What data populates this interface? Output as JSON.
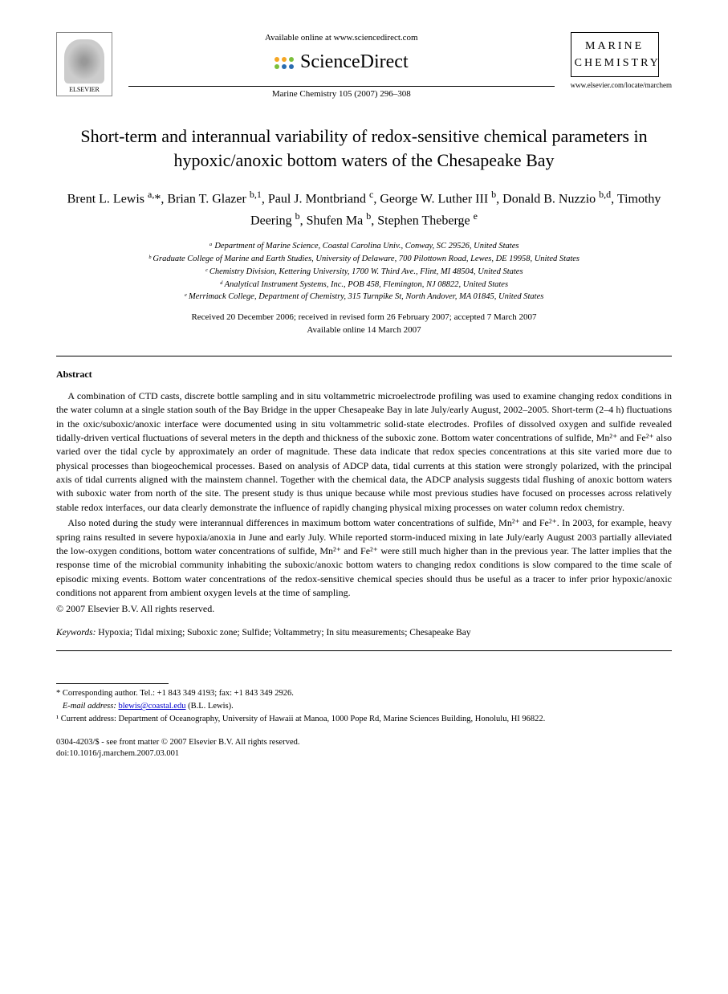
{
  "header": {
    "available_online": "Available online at www.sciencedirect.com",
    "sciencedirect": "ScienceDirect",
    "elsevier_label": "ELSEVIER",
    "journal_ref": "Marine Chemistry 105 (2007) 296–308",
    "journal_cover_line1": "MARINE",
    "journal_cover_line2": "CHEMISTRY",
    "journal_url": "www.elsevier.com/locate/marchem",
    "sd_dot_colors": [
      "#f5a623",
      "#f5a623",
      "#7bbf3a",
      "#7bbf3a",
      "#2b6cb0",
      "#2b6cb0"
    ]
  },
  "article": {
    "title": "Short-term and interannual variability of redox-sensitive chemical parameters in hypoxic/anoxic bottom waters of the Chesapeake Bay",
    "authors_html": "Brent L. Lewis <sup>a,</sup>*, Brian T. Glazer <sup>b,1</sup>, Paul J. Montbriand <sup>c</sup>, George W. Luther III <sup>b</sup>, Donald B. Nuzzio <sup>b,d</sup>, Timothy Deering <sup>b</sup>, Shufen Ma <sup>b</sup>, Stephen Theberge <sup>e</sup>",
    "affiliations": [
      "ᵃ Department of Marine Science, Coastal Carolina Univ., Conway, SC 29526, United States",
      "ᵇ Graduate College of Marine and Earth Studies, University of Delaware, 700 Pilottown Road, Lewes, DE 19958, United States",
      "ᶜ Chemistry Division, Kettering University, 1700 W. Third Ave., Flint, MI 48504, United States",
      "ᵈ Analytical Instrument Systems, Inc., POB 458, Flemington, NJ 08822, United States",
      "ᵉ Merrimack College, Department of Chemistry, 315 Turnpike St, North Andover, MA 01845, United States"
    ],
    "dates_line1": "Received 20 December 2006; received in revised form 26 February 2007; accepted 7 March 2007",
    "dates_line2": "Available online 14 March 2007"
  },
  "abstract": {
    "heading": "Abstract",
    "paragraphs": [
      "A combination of CTD casts, discrete bottle sampling and in situ voltammetric microelectrode profiling was used to examine changing redox conditions in the water column at a single station south of the Bay Bridge in the upper Chesapeake Bay in late July/early August, 2002–2005. Short-term (2–4 h) fluctuations in the oxic/suboxic/anoxic interface were documented using in situ voltammetric solid-state electrodes. Profiles of dissolved oxygen and sulfide revealed tidally-driven vertical fluctuations of several meters in the depth and thickness of the suboxic zone. Bottom water concentrations of sulfide, Mn²⁺ and Fe²⁺ also varied over the tidal cycle by approximately an order of magnitude. These data indicate that redox species concentrations at this site varied more due to physical processes than biogeochemical processes. Based on analysis of ADCP data, tidal currents at this station were strongly polarized, with the principal axis of tidal currents aligned with the mainstem channel. Together with the chemical data, the ADCP analysis suggests tidal flushing of anoxic bottom waters with suboxic water from north of the site. The present study is thus unique because while most previous studies have focused on processes across relatively stable redox interfaces, our data clearly demonstrate the influence of rapidly changing physical mixing processes on water column redox chemistry.",
      "Also noted during the study were interannual differences in maximum bottom water concentrations of sulfide, Mn²⁺ and Fe²⁺. In 2003, for example, heavy spring rains resulted in severe hypoxia/anoxia in June and early July. While reported storm-induced mixing in late July/early August 2003 partially alleviated the low-oxygen conditions, bottom water concentrations of sulfide, Mn²⁺ and Fe²⁺ were still much higher than in the previous year. The latter implies that the response time of the microbial community inhabiting the suboxic/anoxic bottom waters to changing redox conditions is slow compared to the time scale of episodic mixing events. Bottom water concentrations of the redox-sensitive chemical species should thus be useful as a tracer to infer prior hypoxic/anoxic conditions not apparent from ambient oxygen levels at the time of sampling."
    ],
    "copyright": "© 2007 Elsevier B.V. All rights reserved."
  },
  "keywords": {
    "label": "Keywords:",
    "text": " Hypoxia; Tidal mixing; Suboxic zone; Sulfide; Voltammetry; In situ measurements; Chesapeake Bay"
  },
  "footnotes": {
    "corresponding": "* Corresponding author. Tel.: +1 843 349 4193; fax: +1 843 349 2926.",
    "email_label": "E-mail address:",
    "email": "blewis@coastal.edu",
    "email_person": " (B.L. Lewis).",
    "current_address": "¹ Current address: Department of Oceanography, University of Hawaii at Manoa, 1000 Pope Rd, Marine Sciences Building, Honolulu, HI 96822."
  },
  "doi": {
    "line1": "0304-4203/$ - see front matter © 2007 Elsevier B.V. All rights reserved.",
    "line2": "doi:10.1016/j.marchem.2007.03.001"
  },
  "colors": {
    "text": "#000000",
    "link": "#0000cc",
    "background": "#ffffff"
  },
  "typography": {
    "title_fontsize_pt": 17,
    "author_fontsize_pt": 12,
    "body_fontsize_pt": 9,
    "affil_fontsize_pt": 8,
    "font_family": "Times / Georgia serif"
  }
}
